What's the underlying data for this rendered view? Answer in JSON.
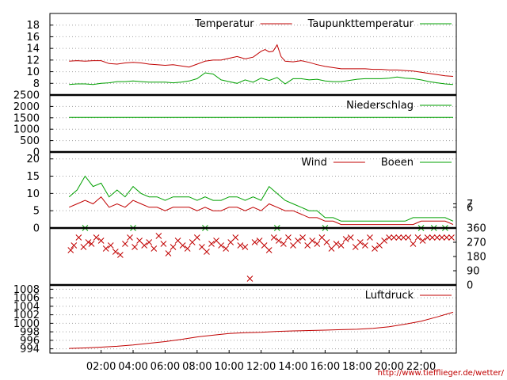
{
  "chart_data": [
    {
      "id": "temperature",
      "type": "line",
      "legend_placement": "top-right",
      "ylim": [
        6,
        20
      ],
      "yticks": [
        8,
        10,
        12,
        14,
        16,
        18
      ],
      "series": [
        {
          "name": "Temperatur",
          "color": "#c00000",
          "x": [
            0,
            0.5,
            1,
            1.5,
            2,
            2.5,
            3,
            3.5,
            4,
            4.5,
            5,
            5.5,
            6,
            6.5,
            7,
            7.5,
            8,
            8.5,
            9,
            9.5,
            10,
            10.5,
            11,
            11.5,
            12,
            12.25,
            12.5,
            12.75,
            13,
            13.25,
            13.5,
            14,
            14.5,
            15,
            15.5,
            16,
            16.5,
            17,
            17.5,
            18,
            18.5,
            19,
            19.5,
            20,
            20.5,
            21,
            21.5,
            22,
            22.5,
            23,
            23.5,
            24
          ],
          "y": [
            11.8,
            11.9,
            11.8,
            11.9,
            11.9,
            11.4,
            11.3,
            11.5,
            11.6,
            11.5,
            11.3,
            11.2,
            11.1,
            11.2,
            11.0,
            10.8,
            11.3,
            11.8,
            12.0,
            12.0,
            12.3,
            12.6,
            12.2,
            12.5,
            13.5,
            13.8,
            13.4,
            13.5,
            14.6,
            12.6,
            11.8,
            11.7,
            11.9,
            11.6,
            11.2,
            10.9,
            10.7,
            10.5,
            10.5,
            10.5,
            10.5,
            10.4,
            10.4,
            10.3,
            10.3,
            10.2,
            10.1,
            9.9,
            9.7,
            9.5,
            9.3,
            9.2
          ]
        },
        {
          "name": "Taupunkttemperatur",
          "color": "#00a000",
          "x": [
            0,
            0.5,
            1,
            1.5,
            2,
            2.5,
            3,
            3.5,
            4,
            4.5,
            5,
            5.5,
            6,
            6.5,
            7,
            7.5,
            8,
            8.5,
            9,
            9.5,
            10,
            10.5,
            11,
            11.5,
            12,
            12.5,
            13,
            13.5,
            14,
            14.5,
            15,
            15.5,
            16,
            16.5,
            17,
            17.5,
            18,
            18.5,
            19,
            19.5,
            20,
            20.5,
            21,
            21.5,
            22,
            22.5,
            23,
            23.5,
            24
          ],
          "y": [
            7.8,
            7.9,
            7.9,
            7.8,
            8.0,
            8.1,
            8.3,
            8.3,
            8.4,
            8.3,
            8.2,
            8.2,
            8.2,
            8.1,
            8.2,
            8.4,
            8.8,
            9.8,
            9.6,
            8.6,
            8.3,
            8.0,
            8.6,
            8.2,
            8.9,
            8.5,
            9.0,
            7.9,
            8.8,
            8.8,
            8.6,
            8.7,
            8.4,
            8.3,
            8.3,
            8.5,
            8.7,
            8.8,
            8.8,
            8.8,
            8.9,
            9.1,
            8.9,
            8.8,
            8.6,
            8.3,
            8.1,
            7.9,
            7.8
          ]
        }
      ]
    },
    {
      "id": "precipitation",
      "type": "line",
      "legend_placement": "top-right",
      "ylim": [
        0,
        2500
      ],
      "yticks": [
        0,
        500,
        1000,
        1500,
        2000,
        2500
      ],
      "series": [
        {
          "name": "Niederschlag",
          "color": "#00a000",
          "x": [
            0,
            24
          ],
          "y": [
            1520,
            1520
          ]
        }
      ]
    },
    {
      "id": "wind",
      "type": "line",
      "legend_placement": "top-right",
      "ylim": [
        0,
        22
      ],
      "yticks": [
        0,
        5,
        10,
        15,
        20
      ],
      "yticks_right": [
        6,
        7
      ],
      "series": [
        {
          "name": "Wind",
          "color": "#c00000",
          "x": [
            0,
            0.5,
            1,
            1.5,
            2,
            2.5,
            3,
            3.5,
            4,
            4.5,
            5,
            5.5,
            6,
            6.5,
            7,
            7.5,
            8,
            8.5,
            9,
            9.5,
            10,
            10.5,
            11,
            11.5,
            12,
            12.5,
            13,
            13.5,
            14,
            14.5,
            15,
            15.5,
            16,
            16.5,
            17,
            17.5,
            18,
            18.5,
            19,
            19.5,
            20,
            20.5,
            21,
            21.5,
            22,
            22.5,
            23,
            23.5,
            24
          ],
          "y": [
            6,
            7,
            8,
            7,
            9,
            6,
            7,
            6,
            8,
            7,
            6,
            6,
            5,
            6,
            6,
            6,
            5,
            6,
            5,
            5,
            6,
            6,
            5,
            6,
            5,
            7,
            6,
            5,
            5,
            4,
            3,
            3,
            2,
            2,
            1,
            1,
            1,
            1,
            1,
            1,
            1,
            1,
            1,
            1,
            2,
            2,
            2,
            2,
            1
          ]
        },
        {
          "name": "Boeen",
          "color": "#00a000",
          "x": [
            0,
            0.5,
            1,
            1.5,
            2,
            2.5,
            3,
            3.5,
            4,
            4.5,
            5,
            5.5,
            6,
            6.5,
            7,
            7.5,
            8,
            8.5,
            9,
            9.5,
            10,
            10.5,
            11,
            11.5,
            12,
            12.5,
            13,
            13.5,
            14,
            14.5,
            15,
            15.5,
            16,
            16.5,
            17,
            17.5,
            18,
            18.5,
            19,
            19.5,
            20,
            20.5,
            21,
            21.5,
            22,
            22.5,
            23,
            23.5,
            24
          ],
          "y": [
            9,
            11,
            15,
            12,
            13,
            9,
            11,
            9,
            12,
            10,
            9,
            9,
            8,
            9,
            9,
            9,
            8,
            9,
            8,
            8,
            9,
            9,
            8,
            9,
            8,
            12,
            10,
            8,
            7,
            6,
            5,
            5,
            3,
            3,
            2,
            2,
            2,
            2,
            2,
            2,
            2,
            2,
            2,
            3,
            3,
            3,
            3,
            3,
            2
          ]
        }
      ]
    },
    {
      "id": "wind-direction",
      "type": "scatter",
      "ylim": [
        0,
        360
      ],
      "yticks_right": [
        0,
        90,
        180,
        270,
        360
      ],
      "series": [
        {
          "name": "",
          "color": "#c00000",
          "x": [
            0.1,
            0.3,
            0.6,
            0.9,
            1.2,
            1.4,
            1.7,
            2.0,
            2.3,
            2.6,
            2.9,
            3.2,
            3.5,
            3.8,
            4.1,
            4.4,
            4.7,
            5.0,
            5.3,
            5.6,
            5.9,
            6.2,
            6.5,
            6.8,
            7.1,
            7.4,
            7.7,
            8.0,
            8.3,
            8.6,
            8.9,
            9.2,
            9.5,
            9.8,
            10.1,
            10.4,
            10.7,
            11.0,
            11.3,
            11.6,
            11.9,
            12.2,
            12.5,
            12.8,
            13.1,
            13.4,
            13.7,
            14.0,
            14.3,
            14.6,
            14.9,
            15.2,
            15.5,
            15.8,
            16.1,
            16.4,
            16.7,
            17.0,
            17.3,
            17.6,
            17.9,
            18.2,
            18.5,
            18.8,
            19.1,
            19.4,
            19.7,
            20.0,
            20.3,
            20.6,
            20.9,
            21.2,
            21.5,
            21.8,
            22.1,
            22.4,
            22.7,
            23.0,
            23.3,
            23.6,
            23.9
          ],
          "y": [
            220,
            250,
            300,
            240,
            270,
            260,
            300,
            280,
            230,
            250,
            210,
            190,
            260,
            300,
            240,
            280,
            250,
            270,
            230,
            310,
            260,
            200,
            240,
            280,
            250,
            230,
            270,
            300,
            240,
            210,
            260,
            280,
            250,
            230,
            270,
            300,
            250,
            240,
            40,
            270,
            280,
            250,
            220,
            300,
            280,
            260,
            300,
            250,
            280,
            300,
            250,
            280,
            260,
            300,
            270,
            230,
            260,
            250,
            290,
            300,
            240,
            270,
            250,
            300,
            230,
            250,
            280,
            300,
            300,
            300,
            300,
            300,
            260,
            300,
            280,
            300,
            300,
            300,
            300,
            300,
            300
          ]
        },
        {
          "name": "",
          "color": "#00a000",
          "x": [
            1.0,
            4.0,
            8.5,
            13.0,
            16.0,
            22.0,
            22.8,
            23.5
          ],
          "y": [
            360,
            360,
            360,
            360,
            360,
            360,
            360,
            360
          ]
        }
      ]
    },
    {
      "id": "pressure",
      "type": "line",
      "legend_placement": "top-right",
      "ylim": [
        993,
        1009
      ],
      "yticks": [
        994,
        996,
        998,
        1000,
        1002,
        1004,
        1006,
        1008
      ],
      "series": [
        {
          "name": "Luftdruck",
          "color": "#c00000",
          "x": [
            0,
            1,
            2,
            3,
            4,
            5,
            6,
            7,
            8,
            9,
            10,
            11,
            12,
            13,
            14,
            15,
            16,
            17,
            18,
            19,
            20,
            21,
            22,
            23,
            24
          ],
          "y": [
            994.1,
            994.2,
            994.4,
            994.6,
            994.9,
            995.3,
            995.7,
            996.2,
            996.8,
            997.2,
            997.6,
            997.8,
            997.9,
            998.1,
            998.2,
            998.3,
            998.4,
            998.5,
            998.6,
            998.8,
            999.2,
            999.8,
            1000.5,
            1001.5,
            1002.6
          ]
        }
      ]
    }
  ],
  "x_axis": {
    "xlim": [
      -1.2,
      24.2
    ],
    "tick_values": [
      2,
      4,
      6,
      8,
      10,
      12,
      14,
      16,
      18,
      20,
      22
    ],
    "tick_labels": [
      "02:00",
      "04:00",
      "06:00",
      "08:00",
      "10:00",
      "12:00",
      "14:00",
      "16:00",
      "18:00",
      "20:00",
      "22:00"
    ]
  },
  "source_url": "http://www.tiefflieger.de/wetter/"
}
